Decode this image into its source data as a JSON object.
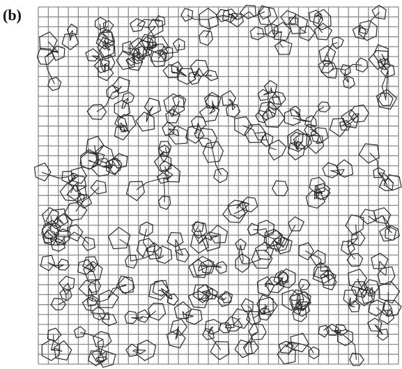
{
  "label": "(b)"
}
